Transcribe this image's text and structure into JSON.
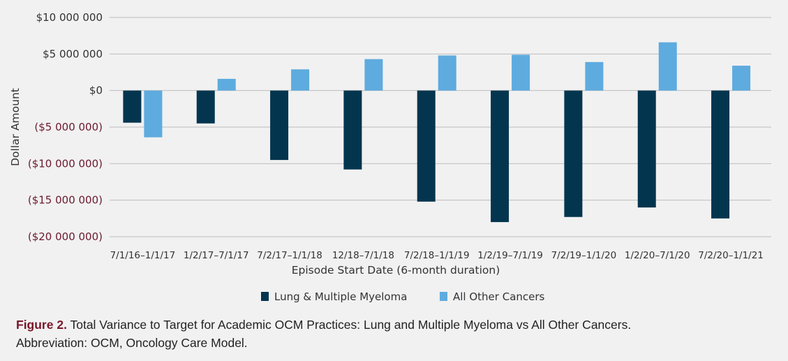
{
  "chart_data": {
    "type": "bar",
    "title": "",
    "xlabel": "Episode Start Date (6-month duration)",
    "ylabel": "Dollar Amount",
    "ylim": [
      -20000000,
      10000000
    ],
    "yticks": [
      10000000,
      5000000,
      0,
      -5000000,
      -10000000,
      -15000000,
      -20000000
    ],
    "ytick_labels": [
      "$10 000 000",
      "$5 000 000",
      "$0",
      "($5 000 000)",
      "($10 000 000)",
      "($15 000 000)",
      "($20 000 000)"
    ],
    "grid": true,
    "legend_position": "bottom",
    "categories": [
      "7/1/16–1/1/17",
      "1/2/17–7/1/17",
      "7/2/17–1/1/18",
      "12/18–7/1/18",
      "7/2/18–1/1/19",
      "1/2/19–7/1/19",
      "7/2/19–1/1/20",
      "1/2/20–7/1/20",
      "7/2/20–1/1/21"
    ],
    "series": [
      {
        "name": "Lung & Multiple Myeloma",
        "color": "#04354f",
        "values": [
          -4400000,
          -4500000,
          -9500000,
          -10800000,
          -15200000,
          -18000000,
          -17300000,
          -16000000,
          -17500000
        ]
      },
      {
        "name": "All Other Cancers",
        "color": "#5eabdf",
        "values": [
          -6400000,
          1600000,
          2900000,
          4300000,
          4800000,
          4900000,
          3900000,
          6600000,
          3400000
        ]
      }
    ]
  },
  "colors": {
    "positive_tick": "#333333",
    "negative_tick": "#6b1a2e",
    "grid": "#bdbdbd"
  },
  "caption": {
    "label": "Figure 2.",
    "text": " Total Variance to Target for Academic OCM Practices: Lung and Multiple Myeloma vs All Other Cancers.",
    "abbreviation": "Abbreviation: OCM, Oncology Care Model."
  }
}
